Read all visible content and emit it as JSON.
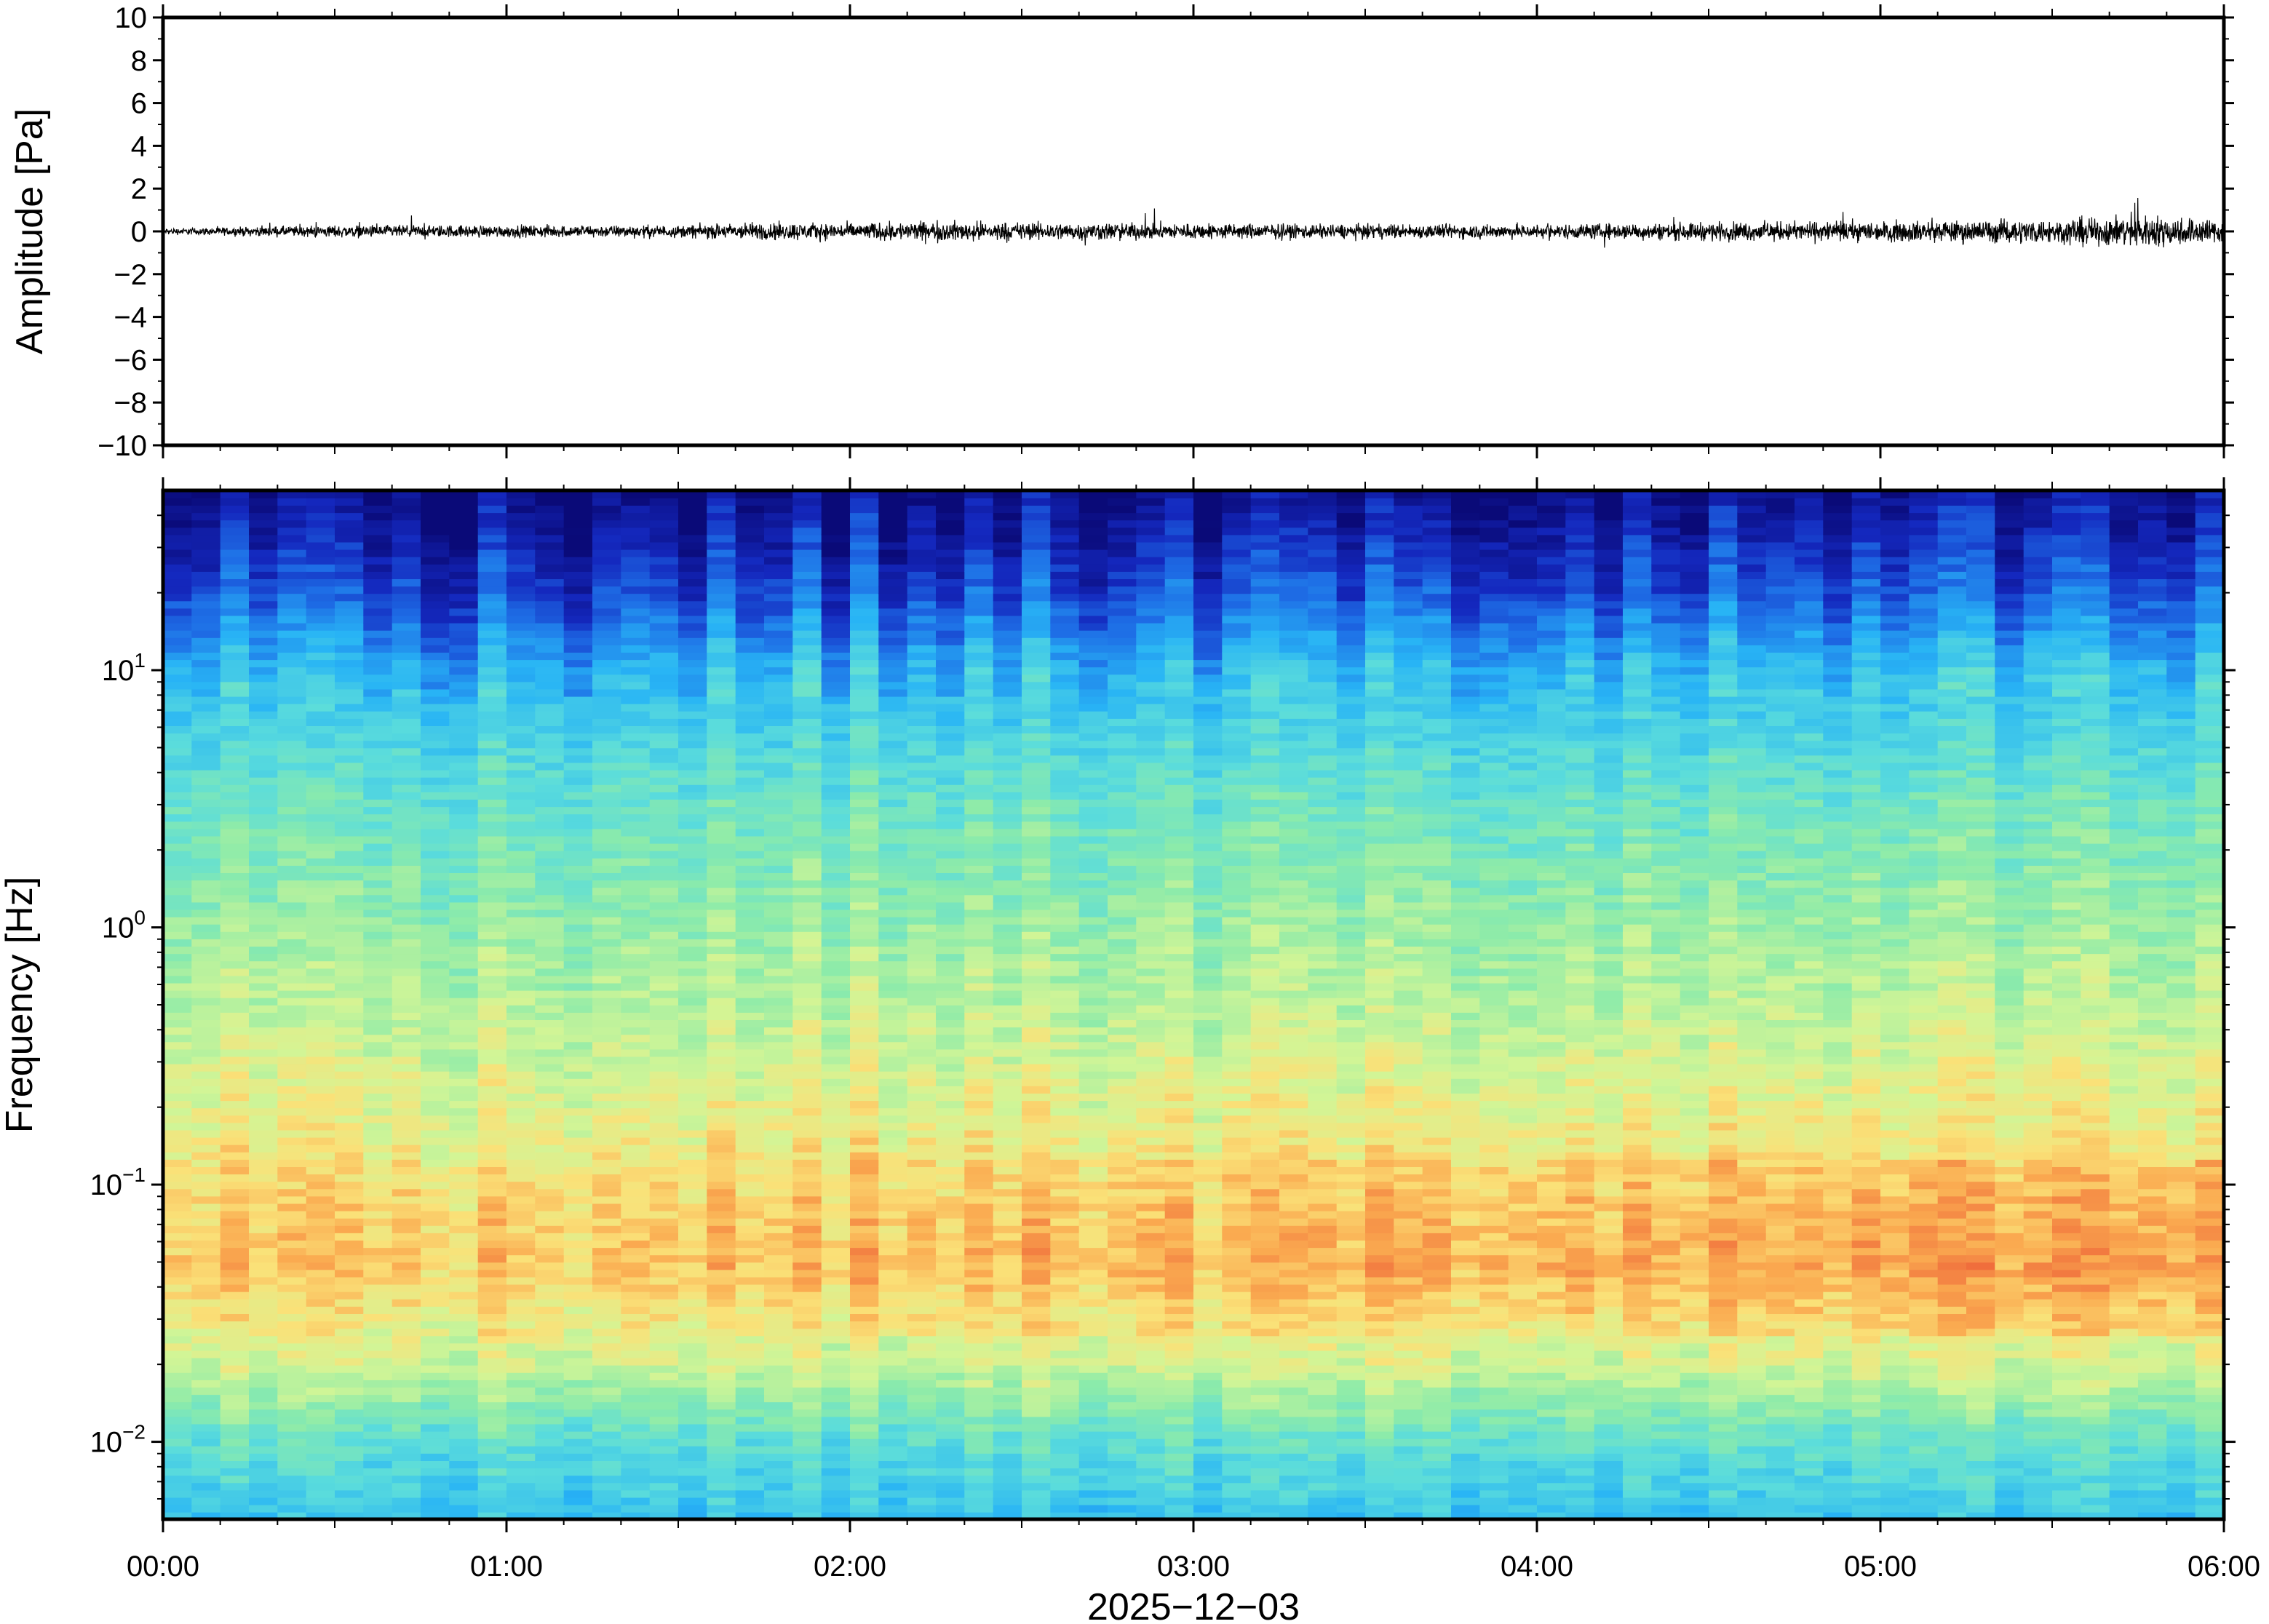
{
  "chart_data": [
    {
      "type": "line",
      "panel": "waveform",
      "title": "",
      "xlabel": "",
      "ylabel": "Amplitude [Pa]",
      "ylim": [
        -10,
        10
      ],
      "y_ticks": [
        -10,
        -8,
        -6,
        -4,
        -2,
        0,
        2,
        4,
        6,
        8,
        10
      ],
      "y_tick_labels": [
        "−10",
        "−8",
        "−6",
        "−4",
        "−2",
        "0",
        "2",
        "4",
        "6",
        "8",
        "10"
      ],
      "x_range": [
        "00:00",
        "06:00"
      ],
      "grid": false,
      "series": [
        {
          "color": "#000000",
          "description_values": {
            "x_hours": [
              0,
              0.5,
              1,
              1.5,
              1.75,
              2,
              2.25,
              2.5,
              3,
              3.5,
              4,
              4.5,
              5,
              5.5,
              5.75,
              6
            ],
            "envelope_pa": [
              0.15,
              0.3,
              0.3,
              0.3,
              0.45,
              0.4,
              0.5,
              0.45,
              0.4,
              0.35,
              0.35,
              0.45,
              0.5,
              0.6,
              0.8,
              0.6
            ]
          }
        }
      ]
    },
    {
      "type": "heatmap",
      "panel": "spectrogram",
      "title": "",
      "xlabel": "2025−12−03",
      "ylabel": "Frequency [Hz]",
      "y_scale": "log",
      "ylim": [
        0.005,
        50
      ],
      "y_ticks": [
        0.01,
        0.1,
        1,
        10
      ],
      "y_tick_labels": [
        {
          "base": "10",
          "exp": "−2"
        },
        {
          "base": "10",
          "exp": "−1"
        },
        {
          "base": "10",
          "exp": "0"
        },
        {
          "base": "10",
          "exp": "1"
        }
      ],
      "x_ticks": [
        "00:00",
        "01:00",
        "02:00",
        "03:00",
        "04:00",
        "05:00",
        "06:00"
      ],
      "colormap": "jet-like (dark blue low power → red high power)",
      "power_profile": {
        "log10_freq": [
          -2.3,
          -2.0,
          -1.7,
          -1.3,
          -1.0,
          -0.5,
          0.0,
          0.5,
          1.0,
          1.3,
          1.7
        ],
        "relative_power": [
          0.38,
          0.48,
          0.66,
          0.78,
          0.74,
          0.66,
          0.58,
          0.5,
          0.36,
          0.18,
          0.02
        ]
      },
      "colors": {
        "low": "#0a0a78",
        "mid": "#80e8b0",
        "high": "#f0603a"
      }
    }
  ]
}
